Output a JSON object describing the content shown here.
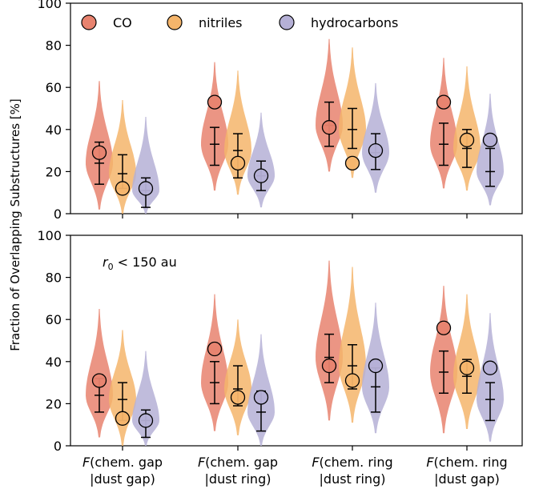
{
  "chart_data": [
    {
      "type": "violin",
      "panel": "top",
      "annotation": "",
      "categories": [
        "F(chem. gap|dust gap)",
        "F(chem. gap|dust ring)",
        "F(chem. ring|dust ring)",
        "F(chem. ring|dust gap)"
      ],
      "ylim": [
        0,
        100
      ],
      "yticks": [
        0,
        20,
        40,
        60,
        80,
        100
      ],
      "series": [
        {
          "name": "CO",
          "color": "#e8836f",
          "observed": [
            29,
            53,
            41,
            53
          ],
          "median": [
            24,
            33,
            42,
            33
          ],
          "err_low": [
            14,
            23,
            32,
            23
          ],
          "err_high": [
            34,
            41,
            53,
            43
          ],
          "vmin": [
            2,
            11,
            20,
            12
          ],
          "vmax": [
            63,
            72,
            83,
            74
          ]
        },
        {
          "name": "nitriles",
          "color": "#f5b56b",
          "observed": [
            12,
            24,
            24,
            35
          ],
          "median": [
            19,
            30,
            40,
            31
          ],
          "err_low": [
            12,
            17,
            31,
            22
          ],
          "err_high": [
            28,
            38,
            50,
            40
          ],
          "vmin": [
            0,
            9,
            17,
            11
          ],
          "vmax": [
            54,
            68,
            79,
            70
          ]
        },
        {
          "name": "hydrocarbons",
          "color": "#b5b0d6",
          "observed": [
            12,
            18,
            30,
            35
          ],
          "median": [
            11,
            18,
            29,
            20
          ],
          "err_low": [
            3,
            11,
            21,
            13
          ],
          "err_high": [
            17,
            25,
            38,
            31
          ],
          "vmin": [
            0,
            3,
            10,
            4
          ],
          "vmax": [
            46,
            48,
            62,
            57
          ]
        }
      ]
    },
    {
      "type": "violin",
      "panel": "bottom",
      "annotation": "r0 < 150 au",
      "annotation_sub": "0",
      "categories": [
        "F(chem. gap|dust gap)",
        "F(chem. gap|dust ring)",
        "F(chem. ring|dust ring)",
        "F(chem. ring|dust gap)"
      ],
      "ylim": [
        0,
        100
      ],
      "yticks": [
        0,
        20,
        40,
        60,
        80,
        100
      ],
      "series": [
        {
          "name": "CO",
          "color": "#e8836f",
          "observed": [
            31,
            46,
            38,
            56
          ],
          "median": [
            24,
            30,
            42,
            35
          ],
          "err_low": [
            16,
            20,
            30,
            25
          ],
          "err_high": [
            32,
            40,
            53,
            45
          ],
          "vmin": [
            4,
            7,
            12,
            6
          ],
          "vmax": [
            65,
            72,
            88,
            76
          ]
        },
        {
          "name": "nitriles",
          "color": "#f5b56b",
          "observed": [
            13,
            23,
            31,
            37
          ],
          "median": [
            22,
            27,
            38,
            33
          ],
          "err_low": [
            12,
            19,
            27,
            25
          ],
          "err_high": [
            30,
            38,
            48,
            41
          ],
          "vmin": [
            0,
            5,
            11,
            8
          ],
          "vmax": [
            55,
            60,
            85,
            72
          ]
        },
        {
          "name": "hydrocarbons",
          "color": "#b5b0d6",
          "observed": [
            12,
            23,
            38,
            37
          ],
          "median": [
            12,
            16,
            28,
            22
          ],
          "err_low": [
            4,
            7,
            16,
            12
          ],
          "err_high": [
            17,
            26,
            37,
            30
          ],
          "vmin": [
            0,
            0,
            6,
            2
          ],
          "vmax": [
            45,
            53,
            68,
            63
          ]
        }
      ]
    }
  ],
  "axes": {
    "ylabel": "Fraction of Overlapping Substructures [%]",
    "xticklabels": [
      {
        "func": "F",
        "line1": "(chem. gap",
        "line2": "|dust gap)"
      },
      {
        "func": "F",
        "line1": "(chem. gap",
        "line2": "|dust ring)"
      },
      {
        "func": "F",
        "line1": "(chem. ring",
        "line2": "|dust ring)"
      },
      {
        "func": "F",
        "line1": "(chem. ring",
        "line2": "|dust gap)"
      }
    ]
  },
  "legend": {
    "placement": "top-left",
    "items": [
      "CO",
      "nitriles",
      "hydrocarbons"
    ]
  }
}
